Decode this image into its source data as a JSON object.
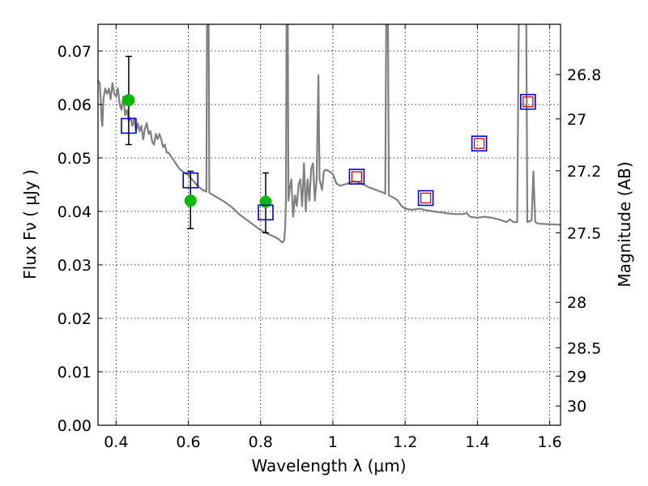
{
  "chart_data": {
    "type": "scatter",
    "xlabel": "Wavelength  λ (μm)",
    "ylabel": "Flux  Fν  ( μJy )",
    "y2label": "Magnitude (AB)",
    "xlim": [
      0.35,
      1.63
    ],
    "ylim": [
      0.0,
      0.075
    ],
    "grid": true,
    "x_ticks": [
      0.4,
      0.6,
      0.8,
      1.0,
      1.2,
      1.4,
      1.6
    ],
    "x_tick_labels": [
      "0.4",
      "0.6",
      "0.8",
      "1",
      "1.2",
      "1.4",
      "1.6"
    ],
    "y_ticks": [
      0.0,
      0.01,
      0.02,
      0.03,
      0.04,
      0.05,
      0.06,
      0.07
    ],
    "y_tick_labels": [
      "0.00",
      "0.01",
      "0.02",
      "0.03",
      "0.04",
      "0.05",
      "0.06",
      "0.07"
    ],
    "right_ticks": [
      {
        "label": "26.8",
        "flux": 0.0656
      },
      {
        "label": "27",
        "flux": 0.0573
      },
      {
        "label": "27.2",
        "flux": 0.0476
      },
      {
        "label": "27.5",
        "flux": 0.036
      },
      {
        "label": "28",
        "flux": 0.023
      },
      {
        "label": "28.5",
        "flux": 0.0145
      },
      {
        "label": "29",
        "flux": 0.0092
      },
      {
        "label": "30",
        "flux": 0.0036
      }
    ],
    "series": [
      {
        "kind": "line",
        "color": "#808080",
        "points": [
          [
            0.35,
            0.0645
          ],
          [
            0.355,
            0.064
          ],
          [
            0.358,
            0.06
          ],
          [
            0.36,
            0.057
          ],
          [
            0.362,
            0.056
          ],
          [
            0.365,
            0.061
          ],
          [
            0.37,
            0.063
          ],
          [
            0.375,
            0.062
          ],
          [
            0.38,
            0.063
          ],
          [
            0.385,
            0.061
          ],
          [
            0.39,
            0.064
          ],
          [
            0.395,
            0.062
          ],
          [
            0.4,
            0.0615
          ],
          [
            0.405,
            0.063
          ],
          [
            0.41,
            0.06
          ],
          [
            0.415,
            0.059
          ],
          [
            0.42,
            0.0615
          ],
          [
            0.425,
            0.058
          ],
          [
            0.43,
            0.059
          ],
          [
            0.435,
            0.057
          ],
          [
            0.44,
            0.0575
          ],
          [
            0.445,
            0.056
          ],
          [
            0.45,
            0.0575
          ],
          [
            0.455,
            0.055
          ],
          [
            0.46,
            0.0565
          ],
          [
            0.465,
            0.055
          ],
          [
            0.47,
            0.056
          ],
          [
            0.475,
            0.0535
          ],
          [
            0.48,
            0.0555
          ],
          [
            0.485,
            0.0565
          ],
          [
            0.49,
            0.0545
          ],
          [
            0.495,
            0.055
          ],
          [
            0.5,
            0.053
          ],
          [
            0.505,
            0.0525
          ],
          [
            0.51,
            0.0545
          ],
          [
            0.515,
            0.0535
          ],
          [
            0.52,
            0.0545
          ],
          [
            0.525,
            0.0535
          ],
          [
            0.53,
            0.052
          ],
          [
            0.535,
            0.0525
          ],
          [
            0.54,
            0.051
          ],
          [
            0.545,
            0.051
          ],
          [
            0.55,
            0.0505
          ],
          [
            0.555,
            0.05
          ],
          [
            0.56,
            0.0495
          ],
          [
            0.565,
            0.049
          ],
          [
            0.57,
            0.0485
          ],
          [
            0.575,
            0.048
          ],
          [
            0.58,
            0.0477
          ],
          [
            0.59,
            0.0472
          ],
          [
            0.6,
            0.0468
          ],
          [
            0.61,
            0.046
          ],
          [
            0.62,
            0.0452
          ],
          [
            0.63,
            0.0445
          ],
          [
            0.64,
            0.044
          ],
          [
            0.65,
            0.0437
          ],
          [
            0.652,
            0.08
          ],
          [
            0.656,
            0.08
          ],
          [
            0.658,
            0.0435
          ],
          [
            0.67,
            0.043
          ],
          [
            0.68,
            0.0426
          ],
          [
            0.7,
            0.0418
          ],
          [
            0.72,
            0.0408
          ],
          [
            0.74,
            0.0395
          ],
          [
            0.76,
            0.0385
          ],
          [
            0.78,
            0.0375
          ],
          [
            0.8,
            0.0365
          ],
          [
            0.82,
            0.0358
          ],
          [
            0.84,
            0.0352
          ],
          [
            0.85,
            0.0348
          ],
          [
            0.86,
            0.0342
          ],
          [
            0.865,
            0.0345
          ],
          [
            0.868,
            0.037
          ],
          [
            0.87,
            0.042
          ],
          [
            0.872,
            0.08
          ],
          [
            0.875,
            0.08
          ],
          [
            0.877,
            0.042
          ],
          [
            0.88,
            0.044
          ],
          [
            0.885,
            0.046
          ],
          [
            0.89,
            0.039
          ],
          [
            0.895,
            0.043
          ],
          [
            0.9,
            0.041
          ],
          [
            0.905,
            0.045
          ],
          [
            0.91,
            0.046
          ],
          [
            0.915,
            0.041
          ],
          [
            0.92,
            0.049
          ],
          [
            0.925,
            0.04
          ],
          [
            0.93,
            0.046
          ],
          [
            0.935,
            0.042
          ],
          [
            0.94,
            0.048
          ],
          [
            0.945,
            0.049
          ],
          [
            0.95,
            0.042
          ],
          [
            0.955,
            0.046
          ],
          [
            0.96,
            0.0655
          ],
          [
            0.963,
            0.046
          ],
          [
            0.97,
            0.044
          ],
          [
            0.975,
            0.0475
          ],
          [
            0.98,
            0.0478
          ],
          [
            0.99,
            0.0475
          ],
          [
            1.0,
            0.047
          ],
          [
            1.01,
            0.0452
          ],
          [
            1.02,
            0.0448
          ],
          [
            1.03,
            0.045
          ],
          [
            1.04,
            0.0452
          ],
          [
            1.05,
            0.0455
          ],
          [
            1.06,
            0.0456
          ],
          [
            1.08,
            0.0452
          ],
          [
            1.1,
            0.0445
          ],
          [
            1.12,
            0.044
          ],
          [
            1.14,
            0.0435
          ],
          [
            1.145,
            0.0433
          ],
          [
            1.148,
            0.08
          ],
          [
            1.152,
            0.08
          ],
          [
            1.155,
            0.043
          ],
          [
            1.17,
            0.0425
          ],
          [
            1.18,
            0.042
          ],
          [
            1.19,
            0.041
          ],
          [
            1.2,
            0.0405
          ],
          [
            1.22,
            0.0403
          ],
          [
            1.24,
            0.0405
          ],
          [
            1.26,
            0.0402
          ],
          [
            1.28,
            0.04
          ],
          [
            1.3,
            0.0398
          ],
          [
            1.32,
            0.0396
          ],
          [
            1.34,
            0.0395
          ],
          [
            1.36,
            0.0395
          ],
          [
            1.37,
            0.0397
          ],
          [
            1.38,
            0.039
          ],
          [
            1.4,
            0.0388
          ],
          [
            1.42,
            0.039
          ],
          [
            1.44,
            0.0388
          ],
          [
            1.46,
            0.0385
          ],
          [
            1.48,
            0.038
          ],
          [
            1.49,
            0.0385
          ],
          [
            1.5,
            0.038
          ],
          [
            1.51,
            0.038
          ],
          [
            1.515,
            0.08
          ],
          [
            1.528,
            0.08
          ],
          [
            1.535,
            0.08
          ],
          [
            1.538,
            0.038
          ],
          [
            1.55,
            0.0383
          ],
          [
            1.555,
            0.0475
          ],
          [
            1.56,
            0.038
          ],
          [
            1.57,
            0.0377
          ],
          [
            1.6,
            0.0376
          ],
          [
            1.63,
            0.0375
          ]
        ]
      },
      {
        "kind": "errorbar-circle",
        "color": "#00bb00",
        "points": [
          {
            "x": 0.435,
            "y": 0.0608,
            "y_low": 0.0525,
            "y_high": 0.069
          },
          {
            "x": 0.606,
            "y": 0.042,
            "y_low": 0.0368,
            "y_high": 0.0475
          },
          {
            "x": 0.814,
            "y": 0.0418,
            "y_low": 0.036,
            "y_high": 0.0472
          }
        ]
      },
      {
        "kind": "open-square",
        "color": "#0000cc",
        "points": [
          {
            "x": 0.435,
            "y": 0.056
          },
          {
            "x": 0.606,
            "y": 0.0458
          },
          {
            "x": 0.814,
            "y": 0.0398
          },
          {
            "x": 1.066,
            "y": 0.0465
          },
          {
            "x": 1.257,
            "y": 0.0425
          },
          {
            "x": 1.405,
            "y": 0.0527
          },
          {
            "x": 1.54,
            "y": 0.0605
          }
        ]
      },
      {
        "kind": "open-square-small",
        "color": "#cc0000",
        "points": [
          {
            "x": 1.066,
            "y": 0.0465
          },
          {
            "x": 1.257,
            "y": 0.0425
          },
          {
            "x": 1.405,
            "y": 0.0527
          },
          {
            "x": 1.54,
            "y": 0.0605
          }
        ]
      }
    ]
  }
}
